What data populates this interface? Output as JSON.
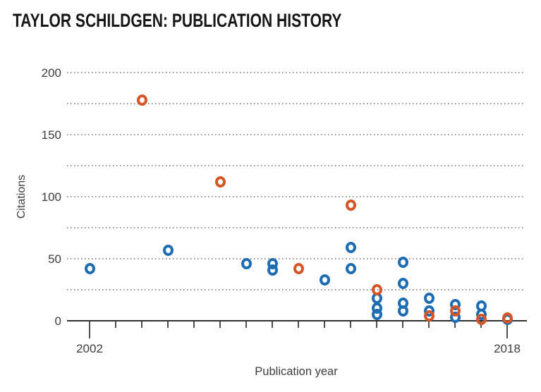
{
  "header": {
    "title": "TAYLOR SCHILDGEN: PUBLICATION HISTORY"
  },
  "chart_data": {
    "type": "scatter",
    "title": "TAYLOR SCHILDGEN: PUBLICATION HISTORY",
    "xlabel": "Publication year",
    "ylabel": "Citations",
    "xlim": [
      2001,
      2019
    ],
    "ylim": [
      0,
      200
    ],
    "grid": "horizontal dotted, every 25",
    "legend_position": "none",
    "y_ticks": [
      200,
      150,
      100,
      50,
      0
    ],
    "y_gridline_values": [
      200,
      175,
      150,
      125,
      100,
      75,
      50,
      25
    ],
    "x_tick_years": [
      2002,
      2003,
      2004,
      2005,
      2006,
      2007,
      2008,
      2009,
      2010,
      2011,
      2012,
      2013,
      2014,
      2015,
      2016,
      2017,
      2018
    ],
    "x_labeled_ticks": [
      {
        "year": 2002,
        "label": "2002"
      },
      {
        "year": 2018,
        "label": "2018"
      }
    ],
    "colors": {
      "blue": "#1d6cb4",
      "orange": "#d65426"
    },
    "series": [
      {
        "name": "series-blue",
        "color_key": "blue",
        "points": [
          [
            2002,
            42
          ],
          [
            2005,
            57
          ],
          [
            2008,
            46
          ],
          [
            2009,
            46
          ],
          [
            2009,
            41
          ],
          [
            2011,
            33
          ],
          [
            2012,
            59
          ],
          [
            2012,
            42
          ],
          [
            2013,
            18
          ],
          [
            2013,
            10
          ],
          [
            2013,
            5
          ],
          [
            2014,
            47
          ],
          [
            2014,
            30
          ],
          [
            2014,
            14
          ],
          [
            2014,
            8
          ],
          [
            2015,
            18
          ],
          [
            2015,
            8
          ],
          [
            2016,
            13
          ],
          [
            2016,
            3
          ],
          [
            2017,
            12
          ],
          [
            2017,
            5
          ],
          [
            2018,
            1
          ]
        ]
      },
      {
        "name": "series-orange",
        "color_key": "orange",
        "points": [
          [
            2004,
            178
          ],
          [
            2007,
            112
          ],
          [
            2010,
            42
          ],
          [
            2012,
            93
          ],
          [
            2013,
            25
          ],
          [
            2015,
            4
          ],
          [
            2016,
            8
          ],
          [
            2017,
            1
          ],
          [
            2018,
            2
          ]
        ]
      }
    ]
  }
}
